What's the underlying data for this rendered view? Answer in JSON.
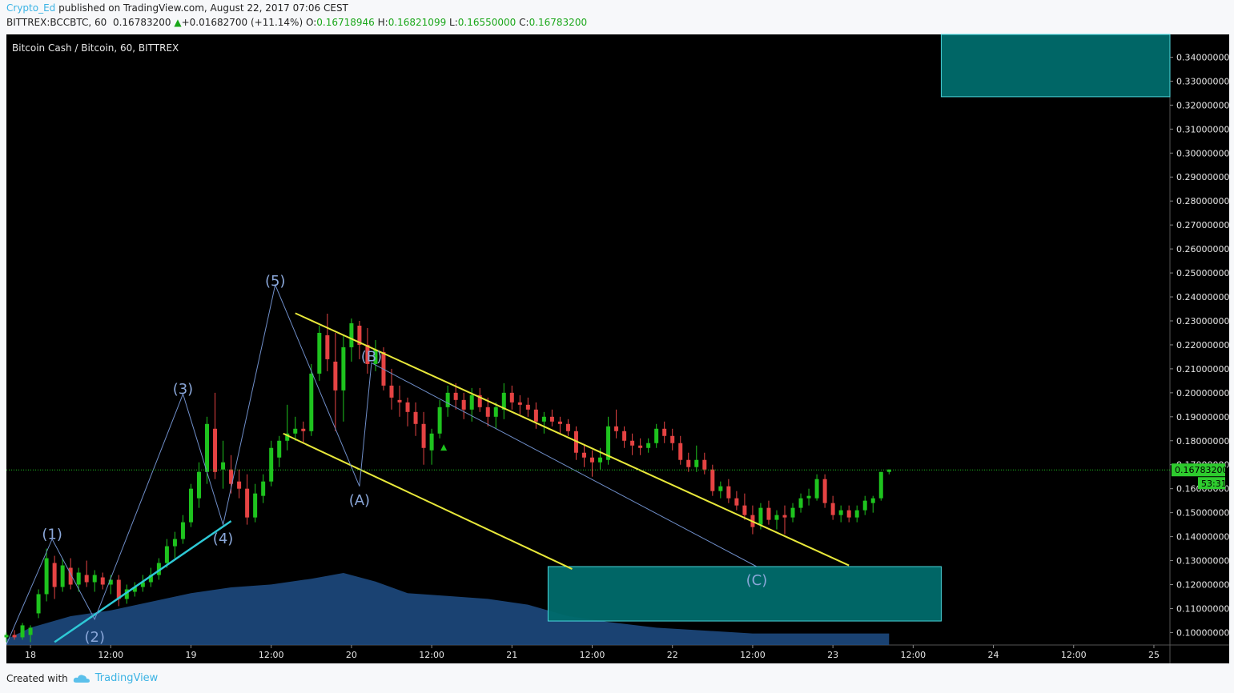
{
  "header": {
    "author": "Crypto_Ed",
    "published_text": "published on TradingView.com, August 22, 2017 07:06 CEST",
    "symbol": "BITTREX:BCCBTC, 60",
    "last": "0.16783200",
    "change_arrow": "▲",
    "change": "+0.01682700 (+11.14%)",
    "o_label": "O:",
    "o": "0.16718946",
    "h_label": "H:",
    "h": "0.16821099",
    "l_label": "L:",
    "l": "0.16550000",
    "c_label": "C:",
    "c": "0.16783200"
  },
  "footer": {
    "created_with": "Created with",
    "brand": "TradingView",
    "brand_icon": "cloud-icon"
  },
  "colors": {
    "up": "#1ec31e",
    "down": "#e54343",
    "wave_line": "#6f8ec9",
    "channel": "#e8e83a",
    "trend": "#2ec9d6",
    "zone_fill": "#006c6c",
    "zone_border": "#4fe0e6",
    "volume": "#1f4e86",
    "price_line": "#1ec31e",
    "background": "#000000"
  },
  "chart_data": {
    "type": "candlestick",
    "title": "Bitcoin Cash / Bitcoin, 60, BITTREX",
    "y_range": [
      0.0948,
      0.3495
    ],
    "y_ticks": [
      0.1,
      0.11,
      0.12,
      0.13,
      0.14,
      0.15,
      0.16,
      0.17,
      0.18,
      0.19,
      0.2,
      0.21,
      0.22,
      0.23,
      0.24,
      0.25,
      0.26,
      0.27,
      0.28,
      0.29,
      0.3,
      0.31,
      0.32,
      0.33,
      0.34
    ],
    "y_tick_labels": [
      "0.10000000",
      "0.11000000",
      "0.12000000",
      "0.13000000",
      "0.14000000",
      "0.15000000",
      "0.16000000",
      "0.17000000",
      "0.18000000",
      "0.19000000",
      "0.20000000",
      "0.21000000",
      "0.22000000",
      "0.23000000",
      "0.24000000",
      "0.25000000",
      "0.26000000",
      "0.27000000",
      "0.28000000",
      "0.29000000",
      "0.30000000",
      "0.31000000",
      "0.32000000",
      "0.33000000",
      "0.34000000"
    ],
    "x_range": [
      -0.3,
      14.2
    ],
    "x_ticks": [
      {
        "t": 0,
        "label": "18"
      },
      {
        "t": 1,
        "label": "12:00"
      },
      {
        "t": 2,
        "label": "19"
      },
      {
        "t": 3,
        "label": "12:00"
      },
      {
        "t": 4,
        "label": "20"
      },
      {
        "t": 5,
        "label": "12:00"
      },
      {
        "t": 6,
        "label": "21"
      },
      {
        "t": 7,
        "label": "12:00"
      },
      {
        "t": 8,
        "label": "22"
      },
      {
        "t": 9,
        "label": "12:00"
      },
      {
        "t": 10,
        "label": "23"
      },
      {
        "t": 11,
        "label": "12:00"
      },
      {
        "t": 12,
        "label": "24"
      },
      {
        "t": 13,
        "label": "12:00"
      },
      {
        "t": 14,
        "label": "25"
      }
    ],
    "last_price": {
      "value": 0.167832,
      "label": "0.16783200",
      "countdown": "53:31"
    },
    "candles": [
      [
        -0.3,
        0.098,
        0.1,
        0.096,
        0.099
      ],
      [
        -0.2,
        0.099,
        0.101,
        0.097,
        0.098
      ],
      [
        -0.1,
        0.098,
        0.104,
        0.097,
        0.103
      ],
      [
        0.0,
        0.099,
        0.103,
        0.096,
        0.102
      ],
      [
        0.1,
        0.108,
        0.118,
        0.106,
        0.116
      ],
      [
        0.2,
        0.116,
        0.135,
        0.113,
        0.131
      ],
      [
        0.3,
        0.129,
        0.132,
        0.114,
        0.119
      ],
      [
        0.4,
        0.119,
        0.131,
        0.117,
        0.128
      ],
      [
        0.5,
        0.127,
        0.131,
        0.118,
        0.12
      ],
      [
        0.6,
        0.12,
        0.127,
        0.117,
        0.125
      ],
      [
        0.7,
        0.124,
        0.13,
        0.119,
        0.121
      ],
      [
        0.8,
        0.121,
        0.126,
        0.117,
        0.124
      ],
      [
        0.9,
        0.123,
        0.125,
        0.118,
        0.12
      ],
      [
        1.0,
        0.12,
        0.124,
        0.116,
        0.122
      ],
      [
        1.1,
        0.122,
        0.124,
        0.111,
        0.114
      ],
      [
        1.2,
        0.114,
        0.12,
        0.112,
        0.118
      ],
      [
        1.3,
        0.117,
        0.121,
        0.115,
        0.119
      ],
      [
        1.4,
        0.119,
        0.124,
        0.117,
        0.121
      ],
      [
        1.5,
        0.121,
        0.127,
        0.119,
        0.124
      ],
      [
        1.6,
        0.124,
        0.131,
        0.122,
        0.129
      ],
      [
        1.7,
        0.129,
        0.139,
        0.127,
        0.136
      ],
      [
        1.8,
        0.136,
        0.142,
        0.131,
        0.139
      ],
      [
        1.9,
        0.139,
        0.149,
        0.137,
        0.146
      ],
      [
        2.0,
        0.146,
        0.162,
        0.144,
        0.16
      ],
      [
        2.1,
        0.156,
        0.171,
        0.152,
        0.167
      ],
      [
        2.2,
        0.167,
        0.19,
        0.162,
        0.187
      ],
      [
        2.3,
        0.185,
        0.2,
        0.164,
        0.167
      ],
      [
        2.4,
        0.168,
        0.18,
        0.16,
        0.171
      ],
      [
        2.5,
        0.168,
        0.174,
        0.158,
        0.162
      ],
      [
        2.6,
        0.163,
        0.168,
        0.156,
        0.16
      ],
      [
        2.7,
        0.16,
        0.166,
        0.145,
        0.148
      ],
      [
        2.8,
        0.148,
        0.162,
        0.146,
        0.158
      ],
      [
        2.9,
        0.157,
        0.166,
        0.154,
        0.163
      ],
      [
        3.0,
        0.163,
        0.18,
        0.161,
        0.177
      ],
      [
        3.1,
        0.173,
        0.182,
        0.169,
        0.18
      ],
      [
        3.2,
        0.18,
        0.195,
        0.176,
        0.183
      ],
      [
        3.3,
        0.183,
        0.19,
        0.18,
        0.185
      ],
      [
        3.4,
        0.185,
        0.188,
        0.179,
        0.184
      ],
      [
        3.5,
        0.184,
        0.212,
        0.182,
        0.208
      ],
      [
        3.6,
        0.208,
        0.228,
        0.205,
        0.225
      ],
      [
        3.7,
        0.224,
        0.233,
        0.209,
        0.214
      ],
      [
        3.8,
        0.213,
        0.225,
        0.184,
        0.201
      ],
      [
        3.9,
        0.201,
        0.224,
        0.188,
        0.219
      ],
      [
        4.0,
        0.219,
        0.231,
        0.213,
        0.229
      ],
      [
        4.1,
        0.228,
        0.23,
        0.214,
        0.22
      ],
      [
        4.2,
        0.22,
        0.227,
        0.208,
        0.212
      ],
      [
        4.3,
        0.212,
        0.222,
        0.209,
        0.218
      ],
      [
        4.4,
        0.217,
        0.219,
        0.201,
        0.203
      ],
      [
        4.5,
        0.203,
        0.21,
        0.193,
        0.198
      ],
      [
        4.6,
        0.197,
        0.203,
        0.19,
        0.196
      ],
      [
        4.7,
        0.196,
        0.198,
        0.186,
        0.192
      ],
      [
        4.8,
        0.192,
        0.196,
        0.182,
        0.187
      ],
      [
        4.9,
        0.187,
        0.192,
        0.17,
        0.177
      ],
      [
        5.0,
        0.176,
        0.185,
        0.17,
        0.183
      ],
      [
        5.1,
        0.183,
        0.197,
        0.181,
        0.194
      ],
      [
        5.2,
        0.194,
        0.203,
        0.19,
        0.2
      ],
      [
        5.3,
        0.2,
        0.204,
        0.193,
        0.197
      ],
      [
        5.4,
        0.197,
        0.2,
        0.189,
        0.193
      ],
      [
        5.5,
        0.193,
        0.202,
        0.188,
        0.199
      ],
      [
        5.6,
        0.199,
        0.202,
        0.192,
        0.194
      ],
      [
        5.7,
        0.194,
        0.198,
        0.186,
        0.19
      ],
      [
        5.8,
        0.19,
        0.196,
        0.185,
        0.194
      ],
      [
        5.9,
        0.193,
        0.204,
        0.189,
        0.2
      ],
      [
        6.0,
        0.2,
        0.203,
        0.193,
        0.196
      ],
      [
        6.1,
        0.196,
        0.199,
        0.191,
        0.195
      ],
      [
        6.2,
        0.195,
        0.198,
        0.19,
        0.193
      ],
      [
        6.3,
        0.193,
        0.196,
        0.185,
        0.188
      ],
      [
        6.4,
        0.188,
        0.192,
        0.183,
        0.19
      ],
      [
        6.5,
        0.19,
        0.193,
        0.186,
        0.188
      ],
      [
        6.6,
        0.188,
        0.19,
        0.183,
        0.187
      ],
      [
        6.7,
        0.187,
        0.189,
        0.182,
        0.184
      ],
      [
        6.8,
        0.184,
        0.186,
        0.172,
        0.175
      ],
      [
        6.9,
        0.175,
        0.178,
        0.169,
        0.173
      ],
      [
        7.0,
        0.173,
        0.176,
        0.165,
        0.171
      ],
      [
        7.1,
        0.171,
        0.177,
        0.168,
        0.173
      ],
      [
        7.2,
        0.172,
        0.19,
        0.17,
        0.186
      ],
      [
        7.3,
        0.186,
        0.193,
        0.181,
        0.184
      ],
      [
        7.4,
        0.184,
        0.186,
        0.177,
        0.18
      ],
      [
        7.5,
        0.18,
        0.183,
        0.174,
        0.178
      ],
      [
        7.6,
        0.178,
        0.181,
        0.174,
        0.177
      ],
      [
        7.7,
        0.177,
        0.181,
        0.175,
        0.179
      ],
      [
        7.8,
        0.179,
        0.187,
        0.177,
        0.185
      ],
      [
        7.9,
        0.185,
        0.188,
        0.179,
        0.182
      ],
      [
        8.0,
        0.182,
        0.185,
        0.176,
        0.179
      ],
      [
        8.1,
        0.179,
        0.182,
        0.17,
        0.172
      ],
      [
        8.2,
        0.172,
        0.175,
        0.167,
        0.169
      ],
      [
        8.3,
        0.169,
        0.178,
        0.167,
        0.172
      ],
      [
        8.4,
        0.172,
        0.175,
        0.166,
        0.168
      ],
      [
        8.5,
        0.168,
        0.17,
        0.157,
        0.159
      ],
      [
        8.6,
        0.159,
        0.163,
        0.156,
        0.161
      ],
      [
        8.7,
        0.161,
        0.164,
        0.154,
        0.156
      ],
      [
        8.8,
        0.156,
        0.159,
        0.151,
        0.153
      ],
      [
        8.9,
        0.153,
        0.158,
        0.147,
        0.149
      ],
      [
        9.0,
        0.149,
        0.153,
        0.141,
        0.144
      ],
      [
        9.1,
        0.145,
        0.154,
        0.143,
        0.152
      ],
      [
        9.2,
        0.152,
        0.155,
        0.145,
        0.147
      ],
      [
        9.3,
        0.147,
        0.151,
        0.143,
        0.149
      ],
      [
        9.4,
        0.149,
        0.153,
        0.141,
        0.148
      ],
      [
        9.5,
        0.148,
        0.154,
        0.146,
        0.152
      ],
      [
        9.6,
        0.152,
        0.158,
        0.15,
        0.156
      ],
      [
        9.7,
        0.156,
        0.16,
        0.153,
        0.157
      ],
      [
        9.8,
        0.156,
        0.166,
        0.155,
        0.164
      ],
      [
        9.9,
        0.164,
        0.166,
        0.152,
        0.154
      ],
      [
        10.0,
        0.154,
        0.157,
        0.147,
        0.149
      ],
      [
        10.1,
        0.149,
        0.153,
        0.146,
        0.151
      ],
      [
        10.2,
        0.151,
        0.153,
        0.146,
        0.148
      ],
      [
        10.3,
        0.148,
        0.153,
        0.146,
        0.151
      ],
      [
        10.4,
        0.151,
        0.157,
        0.149,
        0.155
      ],
      [
        10.5,
        0.154,
        0.157,
        0.15,
        0.156
      ],
      [
        10.6,
        0.156,
        0.167,
        0.155,
        0.167
      ],
      [
        10.7,
        0.167,
        0.168,
        0.166,
        0.168
      ]
    ],
    "volume": [
      [
        -0.3,
        0.002
      ],
      [
        0.0,
        0.006
      ],
      [
        0.5,
        0.01
      ],
      [
        1.0,
        0.012
      ],
      [
        1.5,
        0.015
      ],
      [
        2.0,
        0.018
      ],
      [
        2.5,
        0.02
      ],
      [
        3.0,
        0.021
      ],
      [
        3.5,
        0.023
      ],
      [
        3.9,
        0.025
      ],
      [
        4.3,
        0.022
      ],
      [
        4.7,
        0.018
      ],
      [
        5.2,
        0.017
      ],
      [
        5.7,
        0.016
      ],
      [
        6.2,
        0.014
      ],
      [
        6.7,
        0.01
      ],
      [
        7.2,
        0.008
      ],
      [
        7.8,
        0.006
      ],
      [
        8.4,
        0.005
      ],
      [
        9.0,
        0.004
      ],
      [
        9.6,
        0.004
      ],
      [
        10.2,
        0.004
      ],
      [
        10.7,
        0.004
      ]
    ],
    "volume_max": 0.025,
    "wave_labels": [
      {
        "label": "(1)",
        "t": 0.27,
        "v": 0.139,
        "ty": 0.1414
      },
      {
        "label": "(2)",
        "t": 0.8,
        "v": 0.1055,
        "ty": 0.0985
      },
      {
        "label": "(3)",
        "t": 1.9,
        "v": 0.1995,
        "ty": 0.202
      },
      {
        "label": "(4)",
        "t": 2.4,
        "v": 0.145,
        "ty": 0.1395
      },
      {
        "label": "(5)",
        "t": 3.05,
        "v": 0.245,
        "ty": 0.247
      },
      {
        "label": "(A)",
        "t": 4.1,
        "v": 0.161,
        "ty": 0.1555
      },
      {
        "label": "(B)",
        "t": 4.25,
        "v": 0.2125,
        "ty": 0.2155
      },
      {
        "label": "(C)",
        "t": 9.05,
        "v": 0.1275,
        "ty": 0.1222
      }
    ],
    "wave_path": [
      [
        -0.3,
        0.095
      ],
      [
        0.27,
        0.139
      ],
      [
        0.8,
        0.1055
      ],
      [
        1.9,
        0.1995
      ],
      [
        2.4,
        0.145
      ],
      [
        3.05,
        0.245
      ],
      [
        4.1,
        0.161
      ],
      [
        4.25,
        0.2125
      ],
      [
        9.05,
        0.1275
      ]
    ],
    "channel_lines": [
      [
        [
          3.3,
          0.2332
        ],
        [
          10.2,
          0.128
        ]
      ],
      [
        [
          3.15,
          0.183
        ],
        [
          6.75,
          0.1265
        ]
      ]
    ],
    "trend_line": [
      [
        0.3,
        0.096
      ],
      [
        2.5,
        0.1465
      ]
    ],
    "zones": [
      {
        "t0": 6.45,
        "t1": 11.35,
        "v0": 0.1048,
        "v1": 0.1275
      },
      {
        "t0": 11.35,
        "t1": 14.3,
        "v0": 0.3235,
        "v1": 0.351
      }
    ],
    "markers": [
      {
        "t": 5.15,
        "v": 0.1772
      }
    ]
  }
}
